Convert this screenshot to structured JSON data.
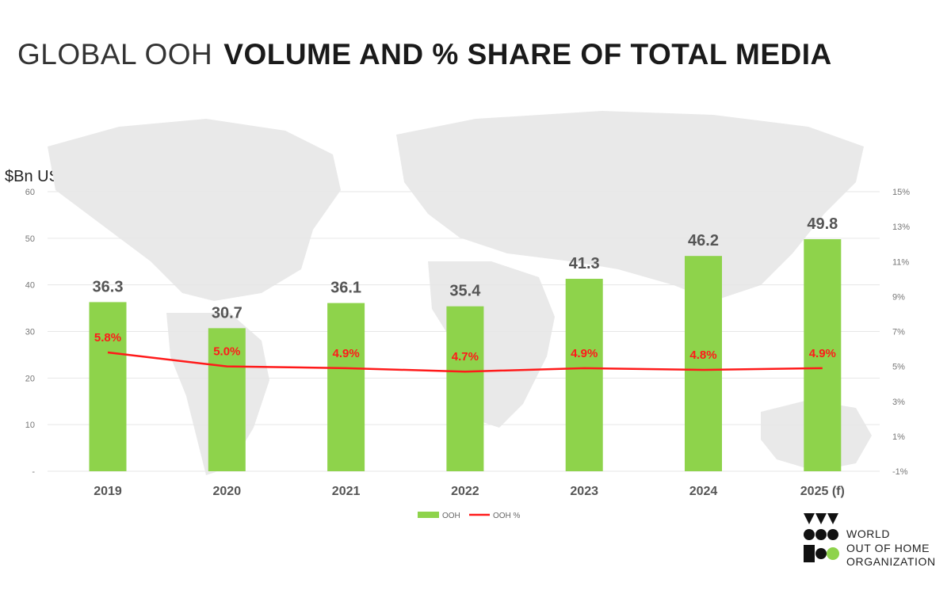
{
  "title": {
    "light": "GLOBAL OOH",
    "bold": "VOLUME AND % SHARE OF TOTAL MEDIA"
  },
  "y_unit_label": "$Bn USD",
  "logo": {
    "lines": [
      "WORLD",
      "OUT OF HOME",
      "ORGANIZATION"
    ],
    "green": "#8ed34b"
  },
  "colors": {
    "bar": "#8ed34b",
    "line": "#ff1a1a",
    "grid": "#e6e6e6",
    "axis_text": "#777777",
    "bar_label": "#555555"
  },
  "chart_data": {
    "type": "bar",
    "categories": [
      "2019",
      "2020",
      "2021",
      "2022",
      "2023",
      "2024",
      "2025 (f)"
    ],
    "series": [
      {
        "name": "OOH",
        "type": "bar",
        "values": [
          36.3,
          30.7,
          36.1,
          35.4,
          41.3,
          46.2,
          49.8
        ],
        "labels": [
          "36.3",
          "30.7",
          "36.1",
          "35.4",
          "41.3",
          "46.2",
          "49.8"
        ]
      },
      {
        "name": "OOH %",
        "type": "line",
        "axis": "right",
        "values": [
          5.8,
          5.0,
          4.9,
          4.7,
          4.9,
          4.8,
          4.9
        ],
        "labels": [
          "5.8%",
          "5.0%",
          "4.9%",
          "4.7%",
          "4.9%",
          "4.8%",
          "4.9%"
        ]
      }
    ],
    "y_left": {
      "ticks": [
        "-",
        "10",
        "20",
        "30",
        "40",
        "50",
        "60"
      ],
      "range": [
        0,
        60
      ]
    },
    "y_right": {
      "ticks": [
        "-1%",
        "1%",
        "3%",
        "5%",
        "7%",
        "9%",
        "11%",
        "13%",
        "15%"
      ],
      "range": [
        -1,
        15
      ]
    },
    "grid": true,
    "legend": {
      "position": "bottom",
      "items": [
        "OOH",
        "OOH %"
      ]
    }
  }
}
